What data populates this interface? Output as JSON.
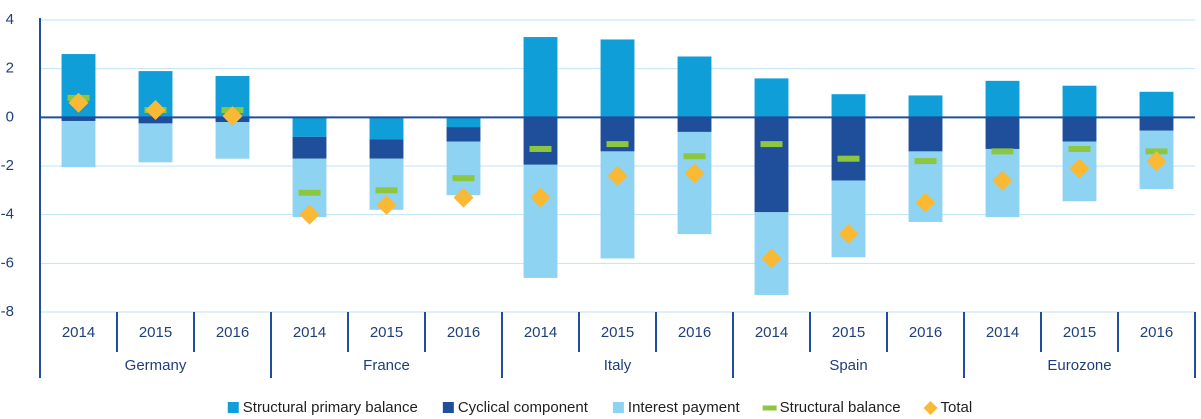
{
  "chart_data": {
    "type": "bar",
    "stacked": true,
    "categories": [
      "2014",
      "2015",
      "2016",
      "2014",
      "2015",
      "2016",
      "2014",
      "2015",
      "2016",
      "2014",
      "2015",
      "2016",
      "2014",
      "2015",
      "2016"
    ],
    "groups": [
      "Germany",
      "France",
      "Italy",
      "Spain",
      "Eurozone"
    ],
    "ylim": [
      -8,
      4
    ],
    "yticks": [
      -8,
      -6,
      -4,
      -2,
      0,
      2,
      4
    ],
    "grid": true,
    "legend": "bottom",
    "series": [
      {
        "name": "Structural primary balance",
        "color": "#0f9ed8",
        "marker": "bar",
        "values": [
          2.6,
          1.9,
          1.7,
          -0.8,
          -0.9,
          -0.4,
          3.3,
          3.2,
          2.5,
          1.6,
          0.95,
          0.9,
          1.5,
          1.3,
          1.05
        ]
      },
      {
        "name": "Cyclical component",
        "color": "#1f4e9b",
        "marker": "bar",
        "values": [
          -0.15,
          -0.25,
          -0.2,
          -0.9,
          -0.8,
          -0.6,
          -1.95,
          -1.4,
          -0.6,
          -3.9,
          -2.6,
          -1.4,
          -1.3,
          -1.0,
          -0.55
        ]
      },
      {
        "name": "Interest payment",
        "color": "#8fd3f2",
        "marker": "bar",
        "values": [
          -1.9,
          -1.6,
          -1.5,
          -2.4,
          -2.1,
          -2.2,
          -4.65,
          -4.4,
          -4.2,
          -3.4,
          -3.15,
          -2.9,
          -2.8,
          -2.45,
          -2.4
        ]
      },
      {
        "name": "Structural balance",
        "color": "#8dc63f",
        "marker": "dash",
        "values": [
          0.8,
          0.3,
          0.3,
          -3.1,
          -3.0,
          -2.5,
          -1.3,
          -1.1,
          -1.6,
          -1.1,
          -1.7,
          -1.8,
          -1.4,
          -1.3,
          -1.4
        ]
      },
      {
        "name": "Total",
        "color": "#f9b934",
        "marker": "diamond",
        "values": [
          0.6,
          0.3,
          0.05,
          -4.0,
          -3.6,
          -3.3,
          -3.3,
          -2.4,
          -2.3,
          -5.8,
          -4.8,
          -3.5,
          -2.6,
          -2.1,
          -1.8
        ]
      }
    ]
  }
}
